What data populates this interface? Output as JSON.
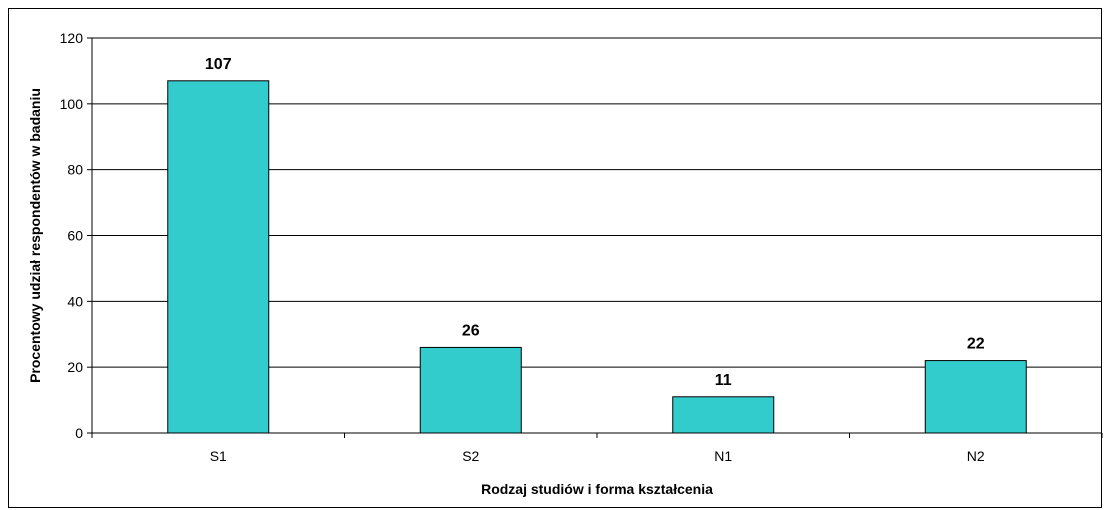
{
  "chart_data": {
    "type": "bar",
    "categories": [
      "S1",
      "S2",
      "N1",
      "N2"
    ],
    "values": [
      107,
      26,
      11,
      22
    ],
    "data_labels": [
      "107",
      "26",
      "11",
      "22"
    ],
    "xlabel": "Rodzaj studiów i forma kształcenia",
    "ylabel": "Procentowy udział respondentów w badaniu",
    "ylim": [
      0,
      120
    ],
    "yticks": [
      0,
      20,
      40,
      60,
      80,
      100,
      120
    ],
    "grid": true,
    "bar_color": "#33CCCC",
    "bar_edge_color": "#000000",
    "legend": "none"
  }
}
